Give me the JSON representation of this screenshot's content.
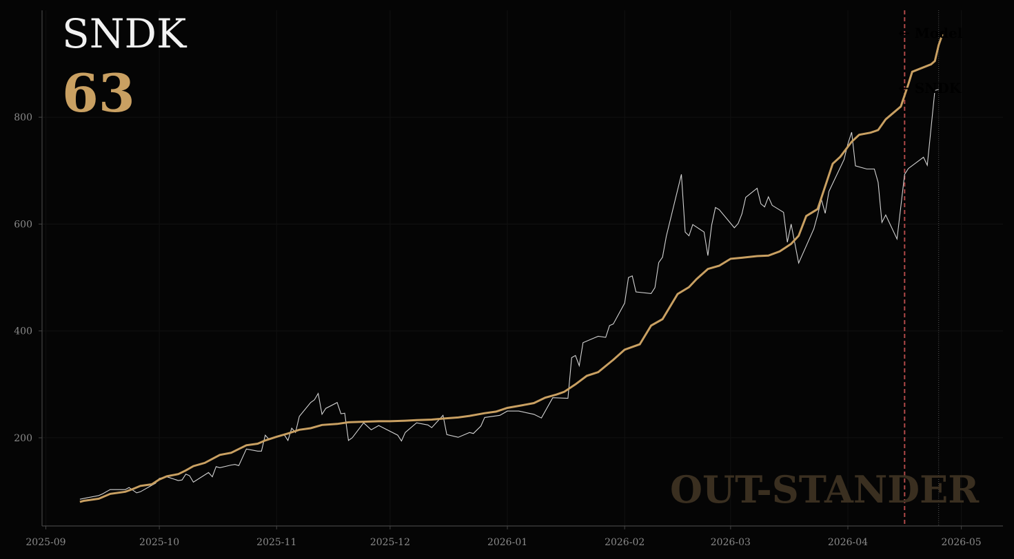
{
  "header": {
    "ticker": "SNDK",
    "score": "63"
  },
  "watermark": "OUT-STANDER",
  "colors": {
    "background": "#050505",
    "model": "#c9a062",
    "price": "#d4d4d4",
    "forecast_line": "#b04848",
    "axis": "#444444",
    "grid": "#111111"
  },
  "chart_data": {
    "type": "line",
    "title": "",
    "xlabel": "",
    "ylabel": "",
    "x_range": [
      "2025-08-31",
      "2026-05-12"
    ],
    "ylim": [
      35,
      1000
    ],
    "x_ticks": [
      "2025-09",
      "2025-10",
      "2025-11",
      "2025-12",
      "2026-01",
      "2026-02",
      "2026-03",
      "2026-04",
      "2026-05"
    ],
    "y_ticks": [
      200,
      400,
      600,
      800
    ],
    "grid": true,
    "last_observation": "2026-04-10",
    "forecast_date": "2026-04-16",
    "series": [
      {
        "name": "SNDK",
        "end_label": "← SNDK",
        "points": [
          [
            "2025-09-10",
            85
          ],
          [
            "2025-09-12",
            88
          ],
          [
            "2025-09-15",
            92
          ],
          [
            "2025-09-16",
            95
          ],
          [
            "2025-09-18",
            103
          ],
          [
            "2025-09-22",
            103
          ],
          [
            "2025-09-23",
            107
          ],
          [
            "2025-09-25",
            97
          ],
          [
            "2025-09-26",
            99
          ],
          [
            "2025-09-30",
            115
          ],
          [
            "2025-10-01",
            124
          ],
          [
            "2025-10-03",
            127
          ],
          [
            "2025-10-06",
            120
          ],
          [
            "2025-10-07",
            121
          ],
          [
            "2025-10-08",
            132
          ],
          [
            "2025-10-09",
            129
          ],
          [
            "2025-10-10",
            117
          ],
          [
            "2025-10-14",
            135
          ],
          [
            "2025-10-15",
            127
          ],
          [
            "2025-10-16",
            146
          ],
          [
            "2025-10-17",
            144
          ],
          [
            "2025-10-20",
            149
          ],
          [
            "2025-10-21",
            150
          ],
          [
            "2025-10-22",
            148
          ],
          [
            "2025-10-24",
            179
          ],
          [
            "2025-10-27",
            175
          ],
          [
            "2025-10-28",
            175
          ],
          [
            "2025-10-29",
            205
          ],
          [
            "2025-10-30",
            197
          ],
          [
            "2025-11-03",
            206
          ],
          [
            "2025-11-04",
            195
          ],
          [
            "2025-11-05",
            218
          ],
          [
            "2025-11-06",
            210
          ],
          [
            "2025-11-07",
            240
          ],
          [
            "2025-11-10",
            266
          ],
          [
            "2025-11-11",
            271
          ],
          [
            "2025-11-12",
            283
          ],
          [
            "2025-11-13",
            244
          ],
          [
            "2025-11-14",
            255
          ],
          [
            "2025-11-17",
            266
          ],
          [
            "2025-11-18",
            245
          ],
          [
            "2025-11-19",
            246
          ],
          [
            "2025-11-20",
            195
          ],
          [
            "2025-11-21",
            200
          ],
          [
            "2025-11-24",
            228
          ],
          [
            "2025-11-26",
            215
          ],
          [
            "2025-11-28",
            223
          ],
          [
            "2025-12-03",
            205
          ],
          [
            "2025-12-04",
            194
          ],
          [
            "2025-12-05",
            210
          ],
          [
            "2025-12-08",
            228
          ],
          [
            "2025-12-11",
            224
          ],
          [
            "2025-12-12",
            219
          ],
          [
            "2025-12-15",
            242
          ],
          [
            "2025-12-16",
            206
          ],
          [
            "2025-12-19",
            201
          ],
          [
            "2025-12-22",
            210
          ],
          [
            "2025-12-23",
            208
          ],
          [
            "2025-12-25",
            222
          ],
          [
            "2025-12-26",
            238
          ],
          [
            "2025-12-30",
            242
          ],
          [
            "2026-01-01",
            250
          ],
          [
            "2026-01-04",
            250
          ],
          [
            "2026-01-08",
            244
          ],
          [
            "2026-01-10",
            237
          ],
          [
            "2026-01-13",
            275
          ],
          [
            "2026-01-17",
            274
          ],
          [
            "2026-01-18",
            350
          ],
          [
            "2026-01-19",
            354
          ],
          [
            "2026-01-20",
            335
          ],
          [
            "2026-01-21",
            378
          ],
          [
            "2026-01-24",
            387
          ],
          [
            "2026-01-25",
            390
          ],
          [
            "2026-01-27",
            388
          ],
          [
            "2026-01-28",
            410
          ],
          [
            "2026-01-29",
            413
          ],
          [
            "2026-02-01",
            452
          ],
          [
            "2026-02-02",
            500
          ],
          [
            "2026-02-03",
            503
          ],
          [
            "2026-02-04",
            473
          ],
          [
            "2026-02-08",
            470
          ],
          [
            "2026-02-09",
            481
          ],
          [
            "2026-02-10",
            528
          ],
          [
            "2026-02-11",
            538
          ],
          [
            "2026-02-12",
            577
          ],
          [
            "2026-02-16",
            693
          ],
          [
            "2026-02-17",
            585
          ],
          [
            "2026-02-18",
            578
          ],
          [
            "2026-02-19",
            599
          ],
          [
            "2026-02-22",
            585
          ],
          [
            "2026-02-23",
            541
          ],
          [
            "2026-02-24",
            598
          ],
          [
            "2026-02-25",
            631
          ],
          [
            "2026-02-26",
            627
          ],
          [
            "2026-03-02",
            593
          ],
          [
            "2026-03-03",
            601
          ],
          [
            "2026-03-04",
            619
          ],
          [
            "2026-03-05",
            650
          ],
          [
            "2026-03-08",
            667
          ],
          [
            "2026-03-09",
            638
          ],
          [
            "2026-03-10",
            632
          ],
          [
            "2026-03-11",
            651
          ],
          [
            "2026-03-12",
            635
          ],
          [
            "2026-03-15",
            622
          ],
          [
            "2026-03-16",
            566
          ],
          [
            "2026-03-17",
            600
          ],
          [
            "2026-03-19",
            527
          ],
          [
            "2026-03-23",
            591
          ],
          [
            "2026-03-24",
            617
          ],
          [
            "2026-03-25",
            646
          ],
          [
            "2026-03-26",
            620
          ],
          [
            "2026-03-27",
            661
          ],
          [
            "2026-03-31",
            721
          ],
          [
            "2026-04-01",
            750
          ],
          [
            "2026-04-02",
            772
          ],
          [
            "2026-04-03",
            709
          ],
          [
            "2026-04-06",
            703
          ],
          [
            "2026-04-08",
            703
          ],
          [
            "2026-04-09",
            678
          ],
          [
            "2026-04-10",
            603
          ],
          [
            "2026-04-11",
            617
          ],
          [
            "2026-04-14",
            572
          ],
          [
            "2026-04-16",
            693
          ],
          [
            "2026-04-17",
            704
          ],
          [
            "2026-04-21",
            725
          ],
          [
            "2026-04-22",
            710
          ],
          [
            "2026-04-24",
            850
          ],
          [
            "2026-04-25",
            852
          ]
        ]
      },
      {
        "name": "Model",
        "end_label": "← Model",
        "points": [
          [
            "2025-09-10",
            80
          ],
          [
            "2025-09-11",
            82
          ],
          [
            "2025-09-15",
            86
          ],
          [
            "2025-09-18",
            95
          ],
          [
            "2025-09-22",
            99
          ],
          [
            "2025-09-24",
            104
          ],
          [
            "2025-09-26",
            110
          ],
          [
            "2025-09-29",
            113
          ],
          [
            "2025-10-01",
            122
          ],
          [
            "2025-10-03",
            128
          ],
          [
            "2025-10-06",
            132
          ],
          [
            "2025-10-08",
            139
          ],
          [
            "2025-10-10",
            147
          ],
          [
            "2025-10-13",
            153
          ],
          [
            "2025-10-17",
            168
          ],
          [
            "2025-10-20",
            172
          ],
          [
            "2025-10-24",
            186
          ],
          [
            "2025-10-27",
            189
          ],
          [
            "2025-10-29",
            195
          ],
          [
            "2025-11-01",
            202
          ],
          [
            "2025-11-04",
            208
          ],
          [
            "2025-11-07",
            215
          ],
          [
            "2025-11-10",
            218
          ],
          [
            "2025-11-13",
            224
          ],
          [
            "2025-11-17",
            226
          ],
          [
            "2025-11-20",
            229
          ],
          [
            "2025-11-24",
            230
          ],
          [
            "2025-11-28",
            231
          ],
          [
            "2025-12-01",
            231
          ],
          [
            "2025-12-05",
            232
          ],
          [
            "2025-12-08",
            233
          ],
          [
            "2025-12-12",
            234
          ],
          [
            "2025-12-15",
            236
          ],
          [
            "2025-12-19",
            238
          ],
          [
            "2025-12-22",
            241
          ],
          [
            "2025-12-26",
            246
          ],
          [
            "2025-12-29",
            249
          ],
          [
            "2026-01-01",
            256
          ],
          [
            "2026-01-05",
            261
          ],
          [
            "2026-01-08",
            265
          ],
          [
            "2026-01-11",
            275
          ],
          [
            "2026-01-14",
            281
          ],
          [
            "2026-01-16",
            286
          ],
          [
            "2026-01-19",
            300
          ],
          [
            "2026-01-22",
            316
          ],
          [
            "2026-01-25",
            323
          ],
          [
            "2026-01-29",
            346
          ],
          [
            "2026-02-01",
            365
          ],
          [
            "2026-02-05",
            375
          ],
          [
            "2026-02-08",
            410
          ],
          [
            "2026-02-11",
            422
          ],
          [
            "2026-02-15",
            469
          ],
          [
            "2026-02-18",
            482
          ],
          [
            "2026-02-20",
            497
          ],
          [
            "2026-02-23",
            516
          ],
          [
            "2026-02-26",
            522
          ],
          [
            "2026-03-01",
            535
          ],
          [
            "2026-03-04",
            537
          ],
          [
            "2026-03-08",
            540
          ],
          [
            "2026-03-11",
            541
          ],
          [
            "2026-03-14",
            549
          ],
          [
            "2026-03-17",
            563
          ],
          [
            "2026-03-19",
            578
          ],
          [
            "2026-03-21",
            615
          ],
          [
            "2026-03-24",
            628
          ],
          [
            "2026-03-28",
            713
          ],
          [
            "2026-03-30",
            726
          ],
          [
            "2026-04-02",
            754
          ],
          [
            "2026-04-04",
            767
          ],
          [
            "2026-04-07",
            771
          ],
          [
            "2026-04-09",
            776
          ],
          [
            "2026-04-11",
            796
          ],
          [
            "2026-04-15",
            820
          ],
          [
            "2026-04-17",
            862
          ],
          [
            "2026-04-18",
            885
          ],
          [
            "2026-04-23",
            899
          ],
          [
            "2026-04-24",
            905
          ],
          [
            "2026-04-25",
            935
          ],
          [
            "2026-04-26",
            955
          ]
        ]
      }
    ]
  }
}
